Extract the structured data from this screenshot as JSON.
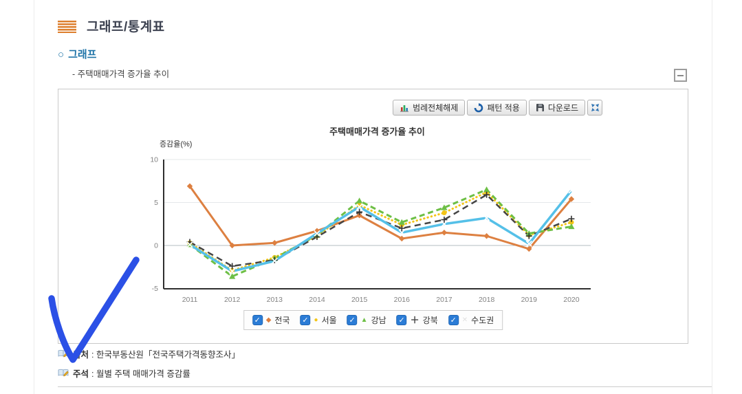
{
  "header": {
    "title": "그래프/통계표"
  },
  "section": {
    "bullet": "○",
    "label": "그래프"
  },
  "subtitle": "- 주택매매가격 증가율 추이",
  "collapse_button": {
    "glyph": "−"
  },
  "toolbar": {
    "legend_clear_label": "범례전체해제",
    "pattern_label": "패턴 적용",
    "download_label": "다운로드"
  },
  "icons": {
    "header": "menu-lines-icon",
    "legend_clear": "bar-chart-icon",
    "pattern": "refresh-icon",
    "download": "floppy-disk-icon",
    "fit": "fit-screen-icon",
    "collapse": "collapse-box-icon",
    "source": "book-pencil-icon",
    "note": "book-pencil-icon",
    "annotation": "hand-drawn-checkmark"
  },
  "chart_data": {
    "type": "line",
    "title": "주택매매가격 증가율 추이",
    "ylabel": "증감율(%)",
    "xlabel": "",
    "categories": [
      "2011",
      "2012",
      "2013",
      "2014",
      "2015",
      "2016",
      "2017",
      "2018",
      "2019",
      "2020"
    ],
    "ylim": [
      -5,
      10
    ],
    "yticks": [
      10,
      5,
      0,
      -5
    ],
    "grid": true,
    "legend_position": "bottom",
    "series": [
      {
        "name": "전국",
        "color": "#dd8041",
        "style": "solid",
        "dash": "",
        "width": 3,
        "marker": "diamond",
        "checked": true,
        "values": [
          6.9,
          0.0,
          0.3,
          1.7,
          3.5,
          0.8,
          1.5,
          1.1,
          -0.4,
          5.4
        ]
      },
      {
        "name": "서울",
        "color": "#f3c517",
        "style": "dotted",
        "dash": "0.5 5",
        "width": 3,
        "marker": "circle",
        "checked": true,
        "values": [
          0.3,
          -2.9,
          -1.4,
          1.1,
          4.7,
          2.4,
          3.8,
          6.2,
          1.2,
          2.7
        ]
      },
      {
        "name": "강남",
        "color": "#6dbf45",
        "style": "dashed",
        "dash": "8 5",
        "width": 3,
        "marker": "triangle",
        "checked": true,
        "values": [
          0.1,
          -3.6,
          -1.5,
          1.2,
          5.2,
          2.7,
          4.4,
          6.5,
          1.4,
          2.2
        ]
      },
      {
        "name": "강북",
        "color": "#454545",
        "style": "dashed",
        "dash": "9 6",
        "width": 2.5,
        "marker": "plus",
        "checked": true,
        "values": [
          0.4,
          -2.4,
          -1.7,
          1.0,
          3.9,
          2.0,
          3.0,
          5.9,
          1.1,
          3.1
        ]
      },
      {
        "name": "수도권",
        "color": "#55c0e8",
        "style": "solid",
        "dash": "",
        "width": 3.5,
        "marker": "x-white",
        "checked": true,
        "values": [
          0.1,
          -3.0,
          -1.8,
          1.4,
          4.5,
          1.5,
          2.5,
          3.2,
          0.2,
          6.4
        ]
      }
    ]
  },
  "footer": {
    "source_label": "출처",
    "source_text": ": 한국부동산원「전국주택가격동향조사」",
    "note_label": "주석",
    "note_text": ": 월별 주택 매매가격 증감률"
  },
  "annotation": {
    "type": "checkmark",
    "color": "#2b50e6"
  },
  "colors": {
    "accent_orange": "#dd7f2e",
    "section_blue": "#1f74a8",
    "checkbox_blue": "#2b7cd6",
    "zero_line": "#b3bdc2",
    "gridline": "#e4e8ea"
  }
}
